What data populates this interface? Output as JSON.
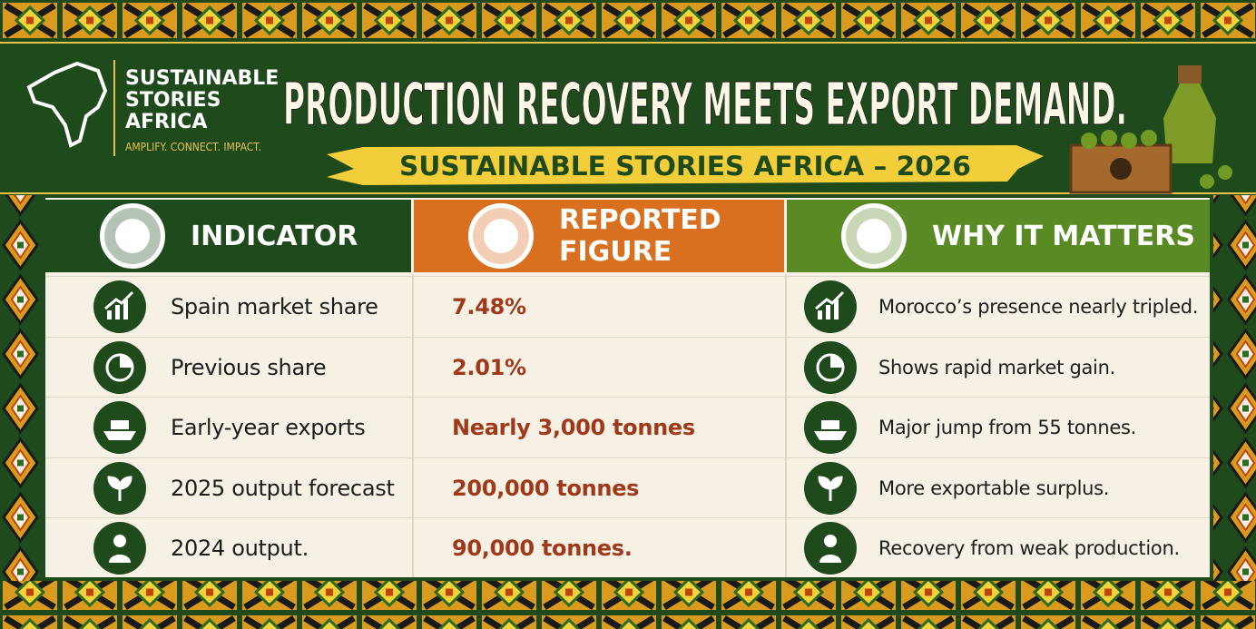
{
  "header": {
    "brand": [
      "SUSTAINABLE",
      "STORIES",
      "AFRICA"
    ],
    "tagline": "AMPLIFY. CONNECT. IMPACT.",
    "title": "PRODUCTION RECOVERY MEETS EXPORT DEMAND.",
    "subtitle": "SUSTAINABLE STORIES AFRICA – 2026"
  },
  "table": {
    "columns": [
      "INDICATOR",
      "REPORTED FIGURE",
      "WHY IT MATTERS"
    ],
    "rows": [
      [
        "Spain market share",
        "7.48%",
        "Morocco’s presence nearly tripled."
      ],
      [
        "Previous share",
        "2.01%",
        "Shows rapid market gain."
      ],
      [
        "Early-year exports",
        "Nearly 3,000 tonnes",
        "Major jump from 55 tonnes."
      ],
      [
        "2025 output forecast",
        "200,000 tonnes",
        "More exportable surplus."
      ],
      [
        "2024 output.",
        "90,000 tonnes.",
        "Recovery from weak production."
      ]
    ]
  }
}
